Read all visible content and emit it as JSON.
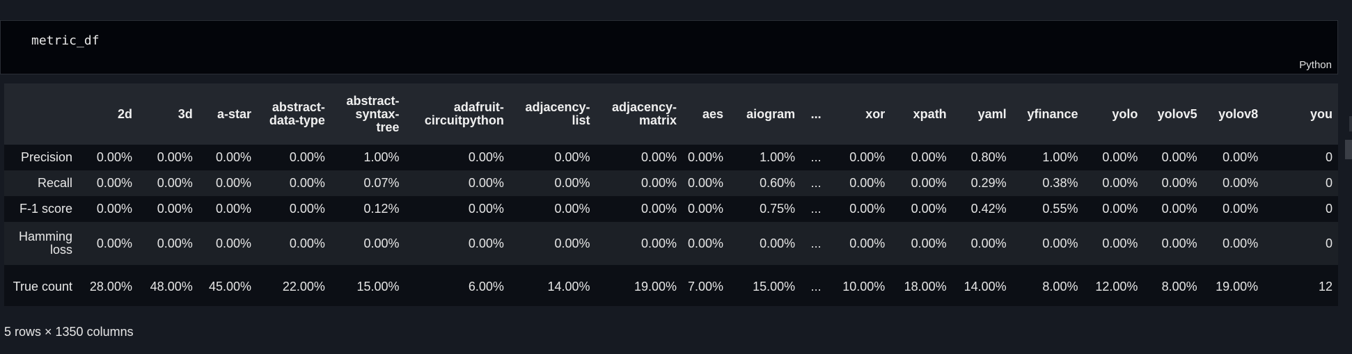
{
  "cell": {
    "code": "metric_df",
    "language": "Python"
  },
  "table": {
    "columns": [
      "2d",
      "3d",
      "a-star",
      "abstract-data-type",
      "abstract-syntax-tree",
      "adafruit-circuitpython",
      "adjacency-list",
      "adjacency-matrix",
      "aes",
      "aiogram",
      "...",
      "xor",
      "xpath",
      "yaml",
      "yfinance",
      "yolo",
      "yolov5",
      "yolov8",
      "you"
    ],
    "rows": [
      {
        "label": "Precision",
        "values": [
          "0.00%",
          "0.00%",
          "0.00%",
          "0.00%",
          "1.00%",
          "0.00%",
          "0.00%",
          "0.00%",
          "0.00%",
          "1.00%",
          "...",
          "0.00%",
          "0.00%",
          "0.80%",
          "1.00%",
          "0.00%",
          "0.00%",
          "0.00%",
          "0"
        ]
      },
      {
        "label": "Recall",
        "values": [
          "0.00%",
          "0.00%",
          "0.00%",
          "0.00%",
          "0.07%",
          "0.00%",
          "0.00%",
          "0.00%",
          "0.00%",
          "0.60%",
          "...",
          "0.00%",
          "0.00%",
          "0.29%",
          "0.38%",
          "0.00%",
          "0.00%",
          "0.00%",
          "0"
        ]
      },
      {
        "label": "F-1 score",
        "values": [
          "0.00%",
          "0.00%",
          "0.00%",
          "0.00%",
          "0.12%",
          "0.00%",
          "0.00%",
          "0.00%",
          "0.00%",
          "0.75%",
          "...",
          "0.00%",
          "0.00%",
          "0.42%",
          "0.55%",
          "0.00%",
          "0.00%",
          "0.00%",
          "0"
        ]
      },
      {
        "label": "Hamming loss",
        "values": [
          "0.00%",
          "0.00%",
          "0.00%",
          "0.00%",
          "0.00%",
          "0.00%",
          "0.00%",
          "0.00%",
          "0.00%",
          "0.00%",
          "...",
          "0.00%",
          "0.00%",
          "0.00%",
          "0.00%",
          "0.00%",
          "0.00%",
          "0.00%",
          "0"
        ]
      },
      {
        "label": "True count",
        "values": [
          "28.00%",
          "48.00%",
          "45.00%",
          "22.00%",
          "15.00%",
          "6.00%",
          "14.00%",
          "19.00%",
          "7.00%",
          "15.00%",
          "...",
          "10.00%",
          "18.00%",
          "14.00%",
          "8.00%",
          "12.00%",
          "8.00%",
          "19.00%",
          "12"
        ]
      }
    ],
    "caption": "5 rows × 1350 columns"
  }
}
